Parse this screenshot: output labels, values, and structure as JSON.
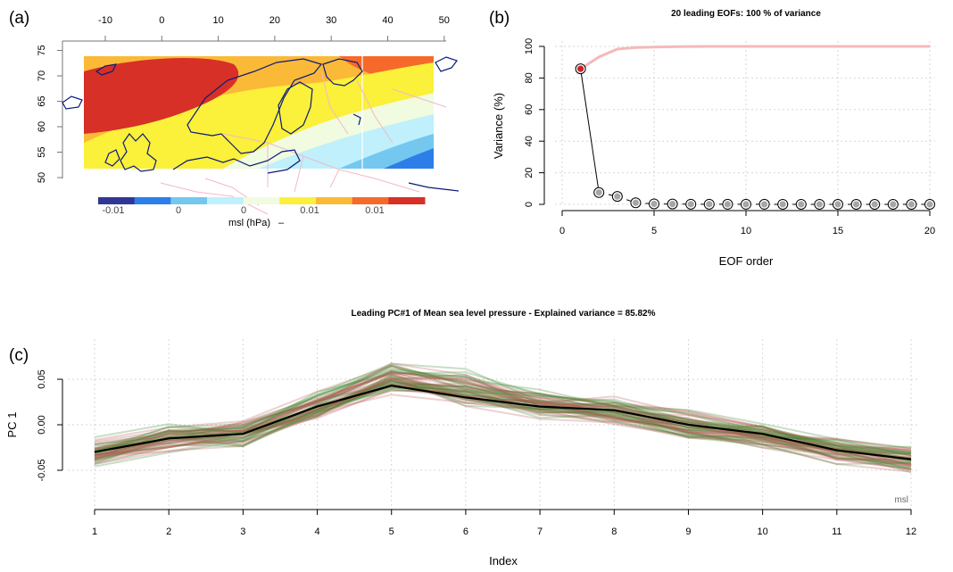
{
  "panel_labels": [
    "(a)",
    "(b)",
    "(c)"
  ],
  "colors": {
    "eof_curve": "#f4b9b9",
    "first_point": "#d02020",
    "points": "#a6a6a6",
    "mean_line": "#000000",
    "ensemble_red": "#c05a5a",
    "ensemble_green": "#3d8a2e",
    "coastline": "#0a1a7a",
    "borders": "#f3b8c8"
  },
  "chart_data": [
    {
      "type": "heatmap",
      "panel": "(a)",
      "description_type": "map",
      "x_ticks": [
        "-10",
        "0",
        "10",
        "20",
        "30",
        "40",
        "50"
      ],
      "y_ticks": [
        "50",
        "55",
        "60",
        "65",
        "70",
        "75"
      ],
      "xlim": [
        -13,
        52
      ],
      "ylim": [
        47,
        77
      ],
      "colorbar": {
        "colors": [
          "#313695",
          "#2c7ee8",
          "#74c8f0",
          "#bff0fb",
          "#f0fbe0",
          "#fbf03a",
          "#fbb938",
          "#f56a2a",
          "#d73027"
        ],
        "tick_labels": [
          "-0.01",
          "0",
          "0",
          "0.01",
          "0.01"
        ],
        "label": "msl (hPa)",
        "suffix": "–"
      }
    },
    {
      "type": "line",
      "panel": "(b)",
      "title": "20 leading EOFs:  100 % of variance",
      "xlabel": "EOF order",
      "ylabel": "Variance (%)",
      "xlim": [
        0,
        20
      ],
      "ylim": [
        0,
        100
      ],
      "x_ticks": [
        "0",
        "5",
        "10",
        "15",
        "20"
      ],
      "y_ticks": [
        "0",
        "20",
        "40",
        "60",
        "80",
        "100"
      ],
      "x": [
        1,
        2,
        3,
        4,
        5,
        6,
        7,
        8,
        9,
        10,
        11,
        12,
        13,
        14,
        15,
        16,
        17,
        18,
        19,
        20
      ],
      "series": [
        {
          "values": [
            85.8,
            7.5,
            5.0,
            1.0,
            0.3,
            0.2,
            0.1,
            0.1,
            0.05,
            0.05,
            0.04,
            0.03,
            0.02,
            0.02,
            0.01,
            0.01,
            0.01,
            0.01,
            0.0,
            0.0
          ]
        },
        {
          "values": [
            85.8,
            93.3,
            98.3,
            99.3,
            99.6,
            99.8,
            99.9,
            100,
            100,
            100,
            100,
            100,
            100,
            100,
            100,
            100,
            100,
            100,
            100,
            100
          ]
        }
      ],
      "grid": true
    },
    {
      "type": "line",
      "panel": "(c)",
      "title": "Leading PC#1 of Mean sea level pressure - Explained variance = 85.82%",
      "xlabel": "Index",
      "ylabel": "PC 1",
      "xlim": [
        1,
        12
      ],
      "ylim": [
        -0.1,
        0.08
      ],
      "x": [
        1,
        2,
        3,
        4,
        5,
        6,
        7,
        8,
        9,
        10,
        11,
        12
      ],
      "x_ticks": [
        "1",
        "2",
        "3",
        "4",
        "5",
        "6",
        "7",
        "8",
        "9",
        "10",
        "11",
        "12"
      ],
      "y_ticks": [
        "-0.05",
        "0.00",
        "0.05"
      ],
      "series": [
        {
          "values": [
            -0.03,
            -0.015,
            -0.01,
            0.02,
            0.043,
            0.03,
            0.02,
            0.016,
            0.0,
            -0.01,
            -0.028,
            -0.038
          ]
        }
      ],
      "ensemble_members": 60,
      "ensemble_spread": 0.018,
      "corner_label": "msl",
      "grid": true
    }
  ]
}
